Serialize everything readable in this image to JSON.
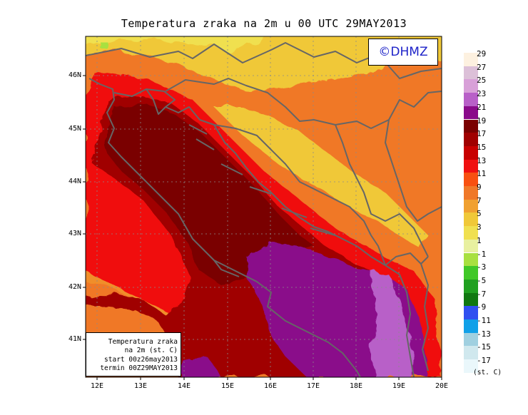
{
  "title": "Temperatura zraka na 2m u 00 UTC 29MAY2013",
  "logo": "©DHMZ",
  "info_box": [
    "Temperatura zraka",
    "na 2m (st. C)",
    "start 00z26may2013",
    "termin 00Z29MAY2013"
  ],
  "axes": {
    "lat_labels": [
      "46N",
      "45N",
      "44N",
      "43N",
      "42N",
      "41N"
    ],
    "lon_labels": [
      "12E",
      "13E",
      "14E",
      "15E",
      "16E",
      "17E",
      "18E",
      "19E",
      "20E"
    ]
  },
  "legend": {
    "levels": [
      "29",
      "27",
      "25",
      "23",
      "21",
      "19",
      "17",
      "15",
      "13",
      "11",
      "9",
      "7",
      "5",
      "3",
      "1",
      "-1",
      "-3",
      "-5",
      "-7",
      "-9",
      "-11",
      "-13",
      "-15",
      "-17"
    ],
    "colors": [
      "#fdf1e0",
      "#dcc0d8",
      "#d8a0d8",
      "#b860c8",
      "#8a0a8a",
      "#7a0000",
      "#a00000",
      "#c80000",
      "#f01010",
      "#f85010",
      "#f07828",
      "#f0a030",
      "#f0c838",
      "#f0e050",
      "#e8f0a0",
      "#a8e040",
      "#40c828",
      "#20a020",
      "#107810",
      "#3050f0",
      "#10a0e8",
      "#a0d0e0",
      "#d0e8ee",
      "#eaf7fb"
    ],
    "unit": "(st. C)"
  }
}
